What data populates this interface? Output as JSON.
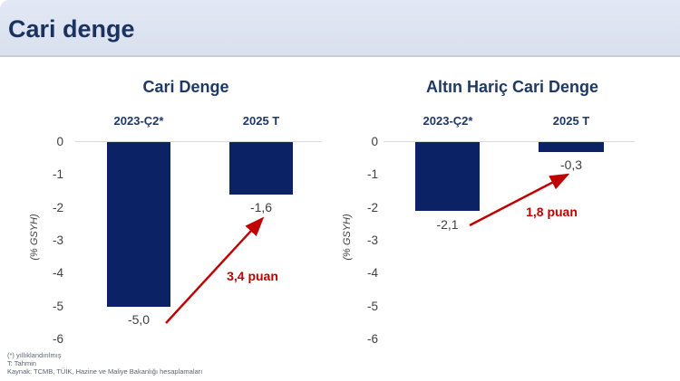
{
  "header": {
    "title": "Cari denge"
  },
  "colors": {
    "bar_navy": "#0b2265",
    "title_navy": "#1f3864",
    "annotation_red": "#c00000",
    "header_bg": "#dce3f0",
    "axis_text": "#404040"
  },
  "chart_data": [
    {
      "type": "bar",
      "title": "Cari Denge",
      "categories": [
        "2023-Ç2*",
        "2025 T"
      ],
      "values": [
        -5.0,
        -1.6
      ],
      "value_labels": [
        "-5,0",
        "-1,6"
      ],
      "ylabel": "(% GSYH)",
      "ylim": [
        -6,
        0
      ],
      "yticks": [
        "0",
        "-1",
        "-2",
        "-3",
        "-4",
        "-5",
        "-6"
      ],
      "grid": false,
      "legend": "none",
      "bar_color": "#0b2265",
      "annotation": {
        "text": "3,4 puan",
        "color": "#c00000",
        "meaning": "improvement from -5,0 to -1,6"
      }
    },
    {
      "type": "bar",
      "title": "Altın Hariç Cari Denge",
      "categories": [
        "2023-Ç2*",
        "2025 T"
      ],
      "values": [
        -2.1,
        -0.3
      ],
      "value_labels": [
        "-2,1",
        "-0,3"
      ],
      "ylabel": "(% GSYH)",
      "ylim": [
        -6,
        0
      ],
      "yticks": [
        "0",
        "-1",
        "-2",
        "-3",
        "-4",
        "-5",
        "-6"
      ],
      "grid": false,
      "legend": "none",
      "bar_color": "#0b2265",
      "annotation": {
        "text": "1,8 puan",
        "color": "#c00000",
        "meaning": "improvement from -2,1 to -0,3"
      }
    }
  ],
  "footnotes": [
    "(*) yıllıklandırılmış",
    "T: Tahmin",
    "Kaynak: TCMB, TÜİK, Hazine ve Maliye Bakanlığı hesaplamaları"
  ]
}
